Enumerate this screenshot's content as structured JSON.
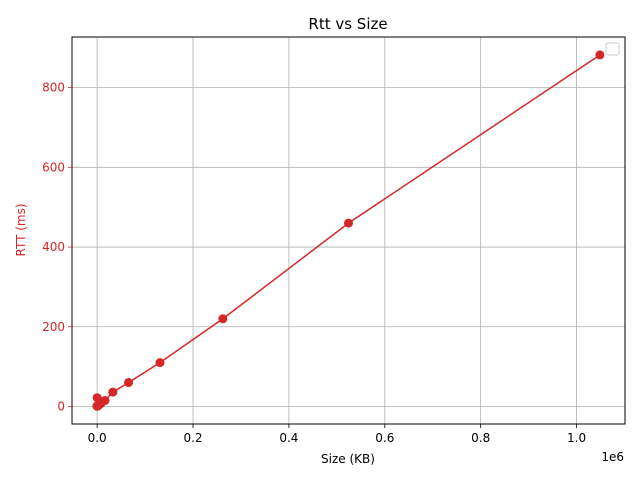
{
  "chart_data": {
    "type": "line",
    "title": "Rtt vs Size",
    "xlabel": "Size (KB)",
    "ylabel": "RTT (ms)",
    "x_offset_label": "1e6",
    "x_tick_labels": [
      "0.0",
      "0.2",
      "0.4",
      "0.6",
      "0.8",
      "1.0"
    ],
    "x_ticks": [
      0,
      200000,
      400000,
      600000,
      800000,
      1000000
    ],
    "y_ticks": [
      0,
      200,
      400,
      600,
      800
    ],
    "y_tick_labels": [
      "0",
      "200",
      "400",
      "600",
      "800"
    ],
    "xlim": [
      -52428,
      1101004
    ],
    "ylim": [
      -44,
      927
    ],
    "grid": true,
    "legend": "top-right (empty)",
    "series": [
      {
        "color": "#d62728",
        "x": [
          1,
          2,
          4,
          8,
          16,
          32,
          64,
          128,
          256,
          512,
          1024,
          2048,
          4096,
          8192,
          16384,
          32768,
          65536,
          131072,
          262144,
          524288,
          1048576
        ],
        "y": [
          22,
          1,
          1,
          1,
          1,
          1,
          1,
          1,
          1,
          1,
          1,
          2,
          4,
          8,
          15,
          36,
          60,
          110,
          220,
          460,
          882
        ]
      }
    ],
    "colors": {
      "series": "#d62728",
      "ylabel": "#d62728",
      "grid": "#b0b0b0",
      "axis": "#000000"
    }
  }
}
